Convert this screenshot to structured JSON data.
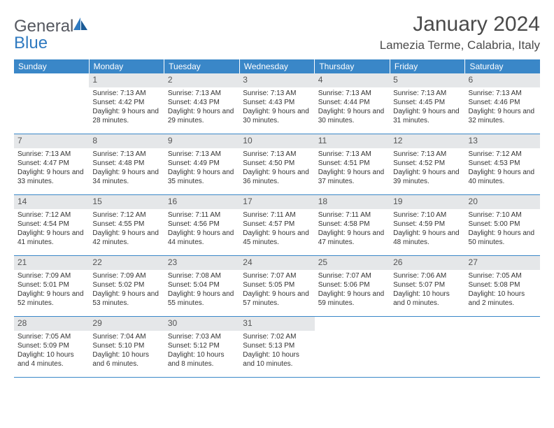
{
  "brand": {
    "part1": "General",
    "part2": "Blue"
  },
  "title": "January 2024",
  "location": "Lamezia Terme, Calabria, Italy",
  "colors": {
    "header_bg": "#3a87c8",
    "header_text": "#ffffff",
    "daynum_bg": "#e5e7e9",
    "rule": "#3a87c8",
    "brand_gray": "#555860",
    "brand_blue": "#2f7ac0",
    "body_text": "#333333",
    "title_text": "#4a4a4a",
    "page_bg": "#ffffff"
  },
  "weekdays": [
    "Sunday",
    "Monday",
    "Tuesday",
    "Wednesday",
    "Thursday",
    "Friday",
    "Saturday"
  ],
  "first_weekday_index": 1,
  "days": [
    {
      "n": 1,
      "sunrise": "7:13 AM",
      "sunset": "4:42 PM",
      "daylight": "9 hours and 28 minutes."
    },
    {
      "n": 2,
      "sunrise": "7:13 AM",
      "sunset": "4:43 PM",
      "daylight": "9 hours and 29 minutes."
    },
    {
      "n": 3,
      "sunrise": "7:13 AM",
      "sunset": "4:43 PM",
      "daylight": "9 hours and 30 minutes."
    },
    {
      "n": 4,
      "sunrise": "7:13 AM",
      "sunset": "4:44 PM",
      "daylight": "9 hours and 30 minutes."
    },
    {
      "n": 5,
      "sunrise": "7:13 AM",
      "sunset": "4:45 PM",
      "daylight": "9 hours and 31 minutes."
    },
    {
      "n": 6,
      "sunrise": "7:13 AM",
      "sunset": "4:46 PM",
      "daylight": "9 hours and 32 minutes."
    },
    {
      "n": 7,
      "sunrise": "7:13 AM",
      "sunset": "4:47 PM",
      "daylight": "9 hours and 33 minutes."
    },
    {
      "n": 8,
      "sunrise": "7:13 AM",
      "sunset": "4:48 PM",
      "daylight": "9 hours and 34 minutes."
    },
    {
      "n": 9,
      "sunrise": "7:13 AM",
      "sunset": "4:49 PM",
      "daylight": "9 hours and 35 minutes."
    },
    {
      "n": 10,
      "sunrise": "7:13 AM",
      "sunset": "4:50 PM",
      "daylight": "9 hours and 36 minutes."
    },
    {
      "n": 11,
      "sunrise": "7:13 AM",
      "sunset": "4:51 PM",
      "daylight": "9 hours and 37 minutes."
    },
    {
      "n": 12,
      "sunrise": "7:13 AM",
      "sunset": "4:52 PM",
      "daylight": "9 hours and 39 minutes."
    },
    {
      "n": 13,
      "sunrise": "7:12 AM",
      "sunset": "4:53 PM",
      "daylight": "9 hours and 40 minutes."
    },
    {
      "n": 14,
      "sunrise": "7:12 AM",
      "sunset": "4:54 PM",
      "daylight": "9 hours and 41 minutes."
    },
    {
      "n": 15,
      "sunrise": "7:12 AM",
      "sunset": "4:55 PM",
      "daylight": "9 hours and 42 minutes."
    },
    {
      "n": 16,
      "sunrise": "7:11 AM",
      "sunset": "4:56 PM",
      "daylight": "9 hours and 44 minutes."
    },
    {
      "n": 17,
      "sunrise": "7:11 AM",
      "sunset": "4:57 PM",
      "daylight": "9 hours and 45 minutes."
    },
    {
      "n": 18,
      "sunrise": "7:11 AM",
      "sunset": "4:58 PM",
      "daylight": "9 hours and 47 minutes."
    },
    {
      "n": 19,
      "sunrise": "7:10 AM",
      "sunset": "4:59 PM",
      "daylight": "9 hours and 48 minutes."
    },
    {
      "n": 20,
      "sunrise": "7:10 AM",
      "sunset": "5:00 PM",
      "daylight": "9 hours and 50 minutes."
    },
    {
      "n": 21,
      "sunrise": "7:09 AM",
      "sunset": "5:01 PM",
      "daylight": "9 hours and 52 minutes."
    },
    {
      "n": 22,
      "sunrise": "7:09 AM",
      "sunset": "5:02 PM",
      "daylight": "9 hours and 53 minutes."
    },
    {
      "n": 23,
      "sunrise": "7:08 AM",
      "sunset": "5:04 PM",
      "daylight": "9 hours and 55 minutes."
    },
    {
      "n": 24,
      "sunrise": "7:07 AM",
      "sunset": "5:05 PM",
      "daylight": "9 hours and 57 minutes."
    },
    {
      "n": 25,
      "sunrise": "7:07 AM",
      "sunset": "5:06 PM",
      "daylight": "9 hours and 59 minutes."
    },
    {
      "n": 26,
      "sunrise": "7:06 AM",
      "sunset": "5:07 PM",
      "daylight": "10 hours and 0 minutes."
    },
    {
      "n": 27,
      "sunrise": "7:05 AM",
      "sunset": "5:08 PM",
      "daylight": "10 hours and 2 minutes."
    },
    {
      "n": 28,
      "sunrise": "7:05 AM",
      "sunset": "5:09 PM",
      "daylight": "10 hours and 4 minutes."
    },
    {
      "n": 29,
      "sunrise": "7:04 AM",
      "sunset": "5:10 PM",
      "daylight": "10 hours and 6 minutes."
    },
    {
      "n": 30,
      "sunrise": "7:03 AM",
      "sunset": "5:12 PM",
      "daylight": "10 hours and 8 minutes."
    },
    {
      "n": 31,
      "sunrise": "7:02 AM",
      "sunset": "5:13 PM",
      "daylight": "10 hours and 10 minutes."
    }
  ],
  "labels": {
    "sunrise": "Sunrise:",
    "sunset": "Sunset:",
    "daylight": "Daylight:"
  }
}
